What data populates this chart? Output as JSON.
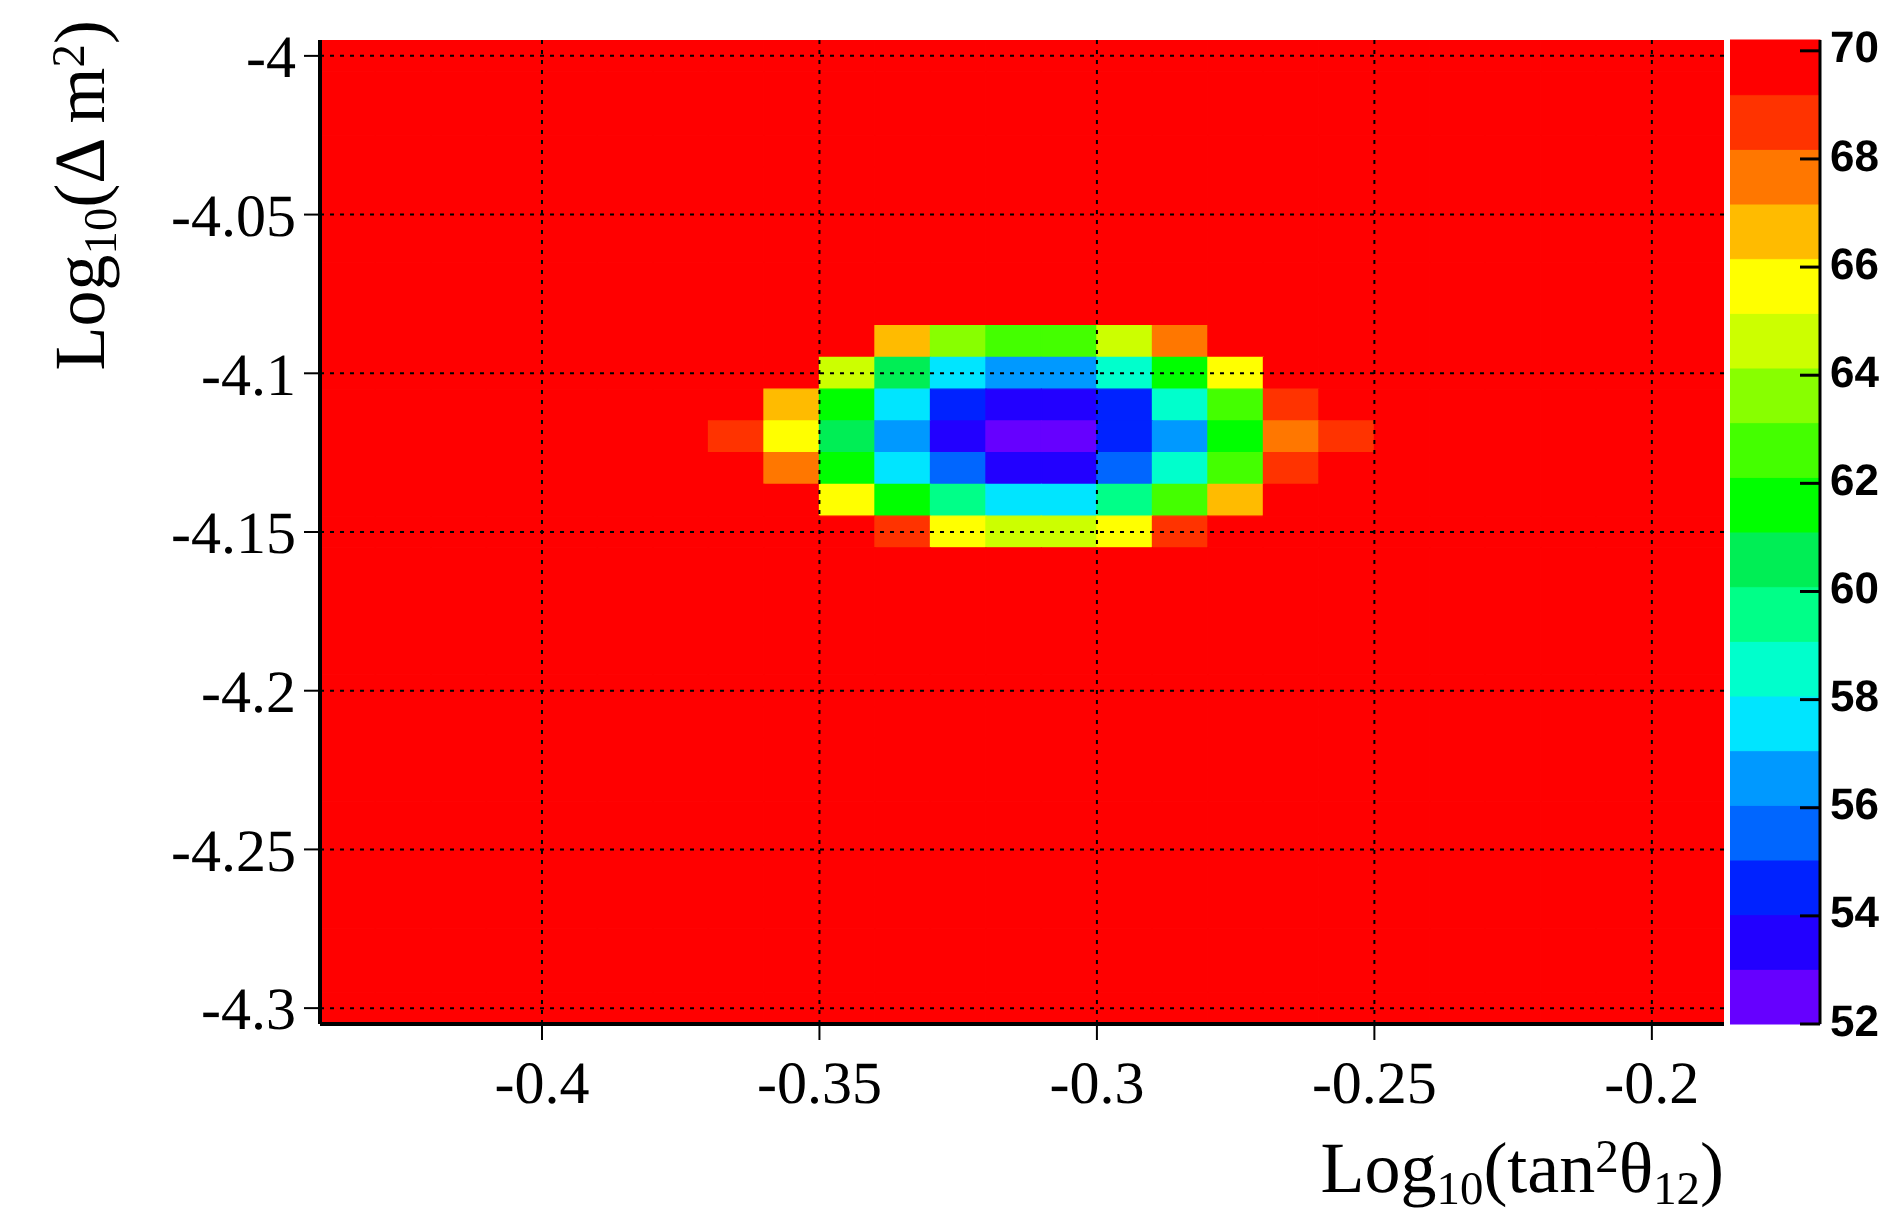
{
  "chart_data": {
    "type": "heatmap",
    "xlabel": "Log$_{10}$(tan$^{2}$θ$_{12}$)",
    "ylabel": "Log$_{10}$(Δ m$^{2}$)",
    "xlim": [
      -0.44,
      -0.187
    ],
    "xticks": [
      -0.4,
      -0.35,
      -0.3,
      -0.25,
      -0.2
    ],
    "ylim": [
      -4.305,
      -3.995
    ],
    "yticks": [
      -4,
      -4.05,
      -4.1,
      -4.15,
      -4.2,
      -4.25,
      -4.3
    ],
    "grid": true,
    "clim": [
      52,
      70.2
    ],
    "cticks": [
      52,
      54,
      56,
      58,
      60,
      62,
      64,
      66,
      68,
      70
    ],
    "colors": [
      "#6600ff",
      "#2200ff",
      "#0022ff",
      "#0066ff",
      "#0099ff",
      "#00e5ff",
      "#00ffcc",
      "#00ff88",
      "#00ee55",
      "#00ff00",
      "#44ff00",
      "#88ff00",
      "#ccff00",
      "#ffff00",
      "#ffbb00",
      "#ff7700",
      "#ff3300",
      "#ff0000"
    ],
    "x": [
      -0.435,
      -0.425,
      -0.415,
      -0.405,
      -0.395,
      -0.385,
      -0.375,
      -0.365,
      -0.355,
      -0.345,
      -0.335,
      -0.325,
      -0.315,
      -0.305,
      -0.295,
      -0.285,
      -0.275,
      -0.265,
      -0.255,
      -0.245,
      -0.235,
      -0.225,
      -0.215,
      -0.205,
      -0.195
    ],
    "y": [
      -4.0,
      -4.01,
      -4.02,
      -4.03,
      -4.04,
      -4.05,
      -4.06,
      -4.07,
      -4.08,
      -4.09,
      -4.1,
      -4.11,
      -4.12,
      -4.13,
      -4.14,
      -4.15,
      -4.16,
      -4.17,
      -4.18,
      -4.19,
      -4.2,
      -4.21,
      -4.22,
      -4.23,
      -4.24,
      -4.25,
      -4.26,
      -4.27,
      -4.28,
      -4.29,
      -4.3
    ],
    "cells": [
      [
        70,
        70,
        70,
        70,
        70,
        70,
        70,
        70,
        70,
        70,
        70,
        70,
        70,
        70,
        70,
        70,
        70,
        70,
        70,
        70,
        70,
        70,
        70,
        70,
        70
      ],
      [
        70,
        70,
        70,
        70,
        70,
        70,
        70,
        70,
        70,
        70,
        70,
        70,
        70,
        70,
        70,
        70,
        70,
        70,
        70,
        70,
        70,
        70,
        70,
        70,
        70
      ],
      [
        70,
        70,
        70,
        70,
        70,
        70,
        70,
        70,
        70,
        70,
        70,
        70,
        70,
        70,
        70,
        70,
        70,
        70,
        70,
        70,
        70,
        70,
        70,
        70,
        70
      ],
      [
        70,
        70,
        70,
        70,
        70,
        70,
        70,
        70,
        70,
        70,
        70,
        70,
        70,
        70,
        70,
        70,
        70,
        70,
        70,
        70,
        70,
        70,
        70,
        70,
        70
      ],
      [
        70,
        70,
        70,
        70,
        70,
        70,
        70,
        70,
        70,
        70,
        70,
        70,
        70,
        70,
        70,
        70,
        70,
        70,
        70,
        70,
        70,
        70,
        70,
        70,
        70
      ],
      [
        70,
        70,
        70,
        70,
        70,
        70,
        70,
        70,
        70,
        70,
        70,
        70,
        70,
        70,
        70,
        70,
        70,
        70,
        70,
        70,
        70,
        70,
        70,
        70,
        70
      ],
      [
        70,
        70,
        70,
        70,
        70,
        70,
        70,
        70,
        70,
        70,
        70,
        70,
        70,
        70,
        70,
        70,
        70,
        70,
        70,
        70,
        70,
        70,
        70,
        70,
        70
      ],
      [
        70,
        70,
        70,
        70,
        70,
        70,
        70,
        70,
        70,
        70,
        70,
        70,
        70,
        70,
        70,
        70,
        70,
        70,
        70,
        70,
        70,
        70,
        70,
        70,
        70
      ],
      [
        70,
        70,
        70,
        70,
        70,
        70,
        70,
        70,
        70,
        70,
        70,
        69.5,
        69.5,
        69.5,
        69.5,
        70,
        70,
        70,
        70,
        70,
        70,
        70,
        70,
        70,
        70
      ],
      [
        70,
        70,
        70,
        70,
        70,
        70,
        70,
        70,
        70,
        70,
        67,
        64,
        63,
        63,
        64.5,
        67.5,
        70,
        70,
        70,
        70,
        70,
        70,
        70,
        70,
        70
      ],
      [
        70,
        70,
        70,
        70,
        70,
        70,
        70,
        70,
        70,
        65,
        61,
        58,
        57,
        57,
        58.5,
        61.5,
        66,
        70,
        70,
        70,
        70,
        70,
        70,
        70,
        70
      ],
      [
        70,
        70,
        70,
        70,
        70,
        70,
        70,
        70,
        67,
        61.5,
        57.5,
        55,
        53.5,
        53.5,
        55,
        58.5,
        62.5,
        68.5,
        70,
        70,
        70,
        70,
        70,
        70,
        70
      ],
      [
        70,
        70,
        70,
        70,
        70,
        70,
        70,
        69,
        66,
        60.5,
        56.5,
        54,
        52.5,
        53,
        54.5,
        57,
        61.5,
        67.5,
        69,
        70,
        70,
        70,
        70,
        70,
        70
      ],
      [
        70,
        70,
        70,
        70,
        70,
        70,
        70,
        70,
        67.5,
        62,
        58,
        55.5,
        54,
        54,
        55.5,
        58.5,
        63,
        69,
        70,
        70,
        70,
        70,
        70,
        70,
        70
      ],
      [
        70,
        70,
        70,
        70,
        70,
        70,
        70,
        70,
        70,
        66,
        62,
        59.5,
        58,
        58,
        59.5,
        62.5,
        67,
        70,
        70,
        70,
        70,
        70,
        70,
        70,
        70
      ],
      [
        70,
        70,
        70,
        70,
        70,
        70,
        70,
        70,
        70,
        70,
        68.5,
        65.5,
        64.5,
        64.5,
        66,
        69,
        70,
        70,
        70,
        70,
        70,
        70,
        70,
        70,
        70
      ],
      [
        70,
        70,
        70,
        70,
        70,
        70,
        70,
        70,
        70,
        70,
        70,
        70,
        70,
        70,
        70,
        70,
        70,
        70,
        70,
        70,
        70,
        70,
        70,
        70,
        70
      ],
      [
        70,
        70,
        70,
        70,
        70,
        70,
        70,
        70,
        70,
        70,
        70,
        70,
        70,
        70,
        70,
        70,
        70,
        70,
        70,
        70,
        70,
        70,
        70,
        70,
        70
      ],
      [
        70,
        70,
        70,
        70,
        70,
        70,
        70,
        70,
        70,
        70,
        70,
        70,
        70,
        70,
        70,
        70,
        70,
        70,
        70,
        70,
        70,
        70,
        70,
        70,
        70
      ],
      [
        70,
        70,
        70,
        70,
        70,
        70,
        70,
        70,
        70,
        70,
        70,
        70,
        70,
        70,
        70,
        70,
        70,
        70,
        70,
        70,
        70,
        70,
        70,
        70,
        70
      ],
      [
        70,
        70,
        70,
        70,
        70,
        70,
        70,
        70,
        70,
        70,
        70,
        70,
        70,
        70,
        70,
        70,
        70,
        70,
        70,
        70,
        70,
        70,
        70,
        70,
        70
      ],
      [
        70,
        70,
        70,
        70,
        70,
        70,
        70,
        70,
        70,
        70,
        70,
        70,
        70,
        70,
        70,
        70,
        70,
        70,
        70,
        70,
        70,
        70,
        70,
        70,
        70
      ],
      [
        70,
        70,
        70,
        70,
        70,
        70,
        70,
        70,
        70,
        70,
        70,
        70,
        70,
        70,
        70,
        70,
        70,
        70,
        70,
        70,
        70,
        70,
        70,
        70,
        70
      ],
      [
        70,
        70,
        70,
        70,
        70,
        70,
        70,
        70,
        70,
        70,
        70,
        70,
        70,
        70,
        70,
        70,
        70,
        70,
        70,
        70,
        70,
        70,
        70,
        70,
        70
      ],
      [
        70,
        70,
        70,
        70,
        70,
        70,
        70,
        70,
        70,
        70,
        70,
        70,
        70,
        70,
        70,
        70,
        70,
        70,
        70,
        70,
        70,
        70,
        70,
        70,
        70
      ],
      [
        70,
        70,
        70,
        70,
        70,
        70,
        70,
        70,
        70,
        70,
        70,
        70,
        70,
        70,
        70,
        70,
        70,
        70,
        70,
        70,
        70,
        70,
        70,
        70,
        70
      ],
      [
        70,
        70,
        70,
        70,
        70,
        70,
        70,
        70,
        70,
        70,
        70,
        70,
        70,
        70,
        70,
        70,
        70,
        70,
        70,
        70,
        70,
        70,
        70,
        70,
        70
      ],
      [
        70,
        70,
        70,
        70,
        70,
        70,
        70,
        70,
        70,
        70,
        70,
        70,
        70,
        70,
        70,
        70,
        70,
        70,
        70,
        70,
        70,
        70,
        70,
        70,
        70
      ],
      [
        70,
        70,
        70,
        70,
        70,
        70,
        70,
        70,
        70,
        70,
        70,
        70,
        70,
        70,
        70,
        70,
        70,
        70,
        70,
        70,
        70,
        70,
        70,
        70,
        70
      ],
      [
        70,
        70,
        70,
        70,
        70,
        70,
        70,
        70,
        70,
        70,
        70,
        70,
        70,
        70,
        70,
        70,
        70,
        70,
        70,
        70,
        70,
        70,
        70,
        70,
        70
      ],
      [
        70,
        70,
        70,
        70,
        70,
        70,
        70,
        70,
        70,
        70,
        70,
        70,
        70,
        70,
        70,
        70,
        70,
        70,
        70,
        70,
        70,
        70,
        70,
        70,
        70
      ]
    ]
  }
}
